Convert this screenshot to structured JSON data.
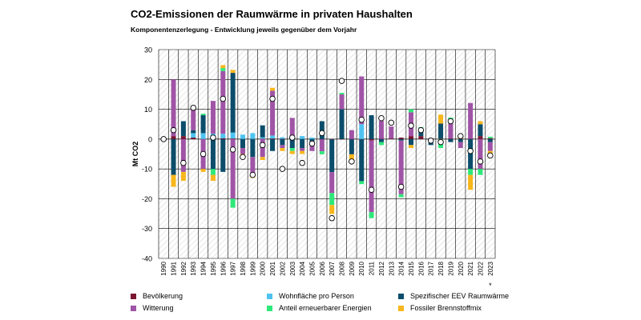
{
  "title": "CO2-Emissionen der Raumwärme in privaten Haushalten",
  "subtitle": "Komponentenzerlegung  - Entwicklung jeweils gegenüber dem Vorjahr",
  "chart_data": {
    "type": "bar",
    "stacked": true,
    "ylabel": "Mt CO2",
    "ylim": [
      -40,
      30
    ],
    "yticks": [
      30,
      20,
      10,
      0,
      -10,
      -20,
      -30,
      -40
    ],
    "categories": [
      "1990",
      "1991",
      "1992",
      "1993",
      "1994",
      "1995",
      "1996",
      "1997",
      "1998",
      "1999",
      "2000",
      "2001",
      "2002",
      "2003",
      "2004",
      "2005",
      "2006",
      "2007",
      "2008",
      "2009",
      "2010",
      "2011",
      "2012",
      "2013",
      "2014",
      "2015",
      "2016",
      "2017",
      "2018",
      "2019",
      "2020",
      "2021",
      "2022",
      "2023"
    ],
    "footnote": "*",
    "series": [
      {
        "name": "Bevölkerung",
        "color": "#7b1530",
        "values": [
          0,
          1,
          1,
          0.5,
          0,
          0.3,
          0.3,
          0.2,
          0,
          0,
          0.1,
          0.2,
          0.1,
          0.1,
          0,
          0,
          -0.1,
          -0.1,
          -0.1,
          -0.1,
          -0.1,
          -0.5,
          0.1,
          0.2,
          0.5,
          1,
          1,
          0.3,
          0.2,
          0.2,
          0.1,
          0.1,
          1,
          0.3
        ]
      },
      {
        "name": "Wohnfläche pro Person",
        "color": "#4fc3f0",
        "values": [
          0,
          0,
          0,
          1.5,
          2,
          1.5,
          1.5,
          2,
          1.5,
          2,
          0.5,
          1,
          0.5,
          0,
          1,
          0.5,
          0,
          0,
          0,
          0,
          5,
          0,
          0,
          0,
          0,
          0,
          0,
          0,
          0,
          0,
          0,
          0,
          0,
          0
        ]
      },
      {
        "name": "Spezifischer EEV Raumwärme",
        "color": "#0b4d6a",
        "values": [
          0,
          -12,
          5,
          1,
          6,
          -10,
          -11,
          20,
          -3,
          -6,
          4,
          -4,
          -2,
          -3,
          -3,
          -2,
          6,
          -11,
          10,
          -5,
          -14,
          8,
          -1,
          0,
          -0.5,
          -2,
          2,
          -2,
          5,
          -1,
          -1,
          -10,
          4,
          -1
        ]
      },
      {
        "name": "Witterung",
        "color": "#a054a6",
        "values": [
          0,
          19,
          -11,
          8,
          -10,
          11,
          21,
          -20,
          -2,
          -6,
          -6,
          15,
          -1,
          7,
          -1,
          -2,
          -4,
          -7,
          5,
          3,
          16,
          -24,
          6,
          4,
          -18,
          8,
          0,
          0,
          0,
          5,
          -2,
          12,
          -10,
          -3
        ]
      },
      {
        "name": "Anteil erneuerbarer Energien",
        "color": "#2ee87a",
        "values": [
          0,
          0,
          0,
          0,
          0.5,
          -2,
          1,
          -3,
          0,
          0,
          0,
          0,
          0,
          -1,
          0,
          0,
          -1,
          -4,
          0.5,
          0,
          -1,
          -2,
          -1,
          0,
          -1,
          1,
          1,
          0,
          -3,
          2,
          0,
          -2,
          -2,
          0.5
        ]
      },
      {
        "name": "Fossiler Brennstoffmix",
        "color": "#f7b71c",
        "values": [
          0,
          -4,
          -3,
          0,
          -1,
          -2,
          1,
          1,
          -1,
          -1,
          -1,
          1,
          -1,
          -1,
          -1,
          0,
          0,
          -3,
          0,
          -2,
          0,
          0,
          0,
          0,
          0,
          -1,
          0,
          0,
          3,
          0,
          1,
          -5,
          1,
          -2
        ]
      }
    ],
    "total_marker": {
      "name": "Gesamtänderung",
      "values": [
        0,
        3,
        -8,
        10.5,
        -5,
        0.5,
        13.5,
        -3.5,
        -6,
        -12,
        -2,
        13.5,
        -10,
        0.5,
        -8,
        -1.5,
        2,
        -26.5,
        19.5,
        -7.5,
        6.5,
        -17,
        7,
        5.5,
        -16,
        4.5,
        3,
        -0.5,
        -1,
        6,
        1,
        -4,
        -7.5,
        -5.5
      ]
    }
  }
}
